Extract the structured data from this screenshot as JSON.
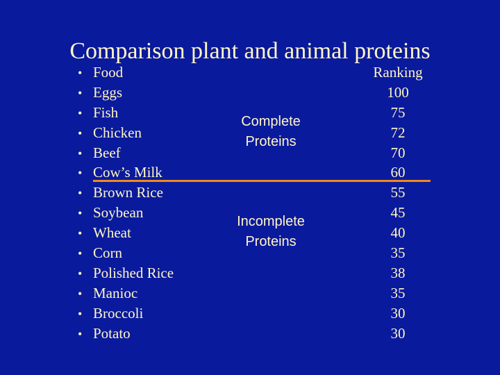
{
  "slide": {
    "title": "Comparison plant and animal proteins",
    "bullet_glyph": "•",
    "foods_header": "Food",
    "ranking_header": "Ranking",
    "rows": [
      {
        "food": "Eggs",
        "ranking": "100"
      },
      {
        "food": "Fish",
        "ranking": "75"
      },
      {
        "food": "Chicken",
        "ranking": "72"
      },
      {
        "food": "Beef",
        "ranking": "70"
      },
      {
        "food": "Cow’s Milk",
        "ranking": "60"
      },
      {
        "food": "Brown Rice",
        "ranking": "55"
      },
      {
        "food": "Soybean",
        "ranking": "45"
      },
      {
        "food": "Wheat",
        "ranking": "40"
      },
      {
        "food": "Corn",
        "ranking": "35"
      },
      {
        "food": "Polished Rice",
        "ranking": "38"
      },
      {
        "food": "Manioc",
        "ranking": "35"
      },
      {
        "food": "Broccoli",
        "ranking": "30"
      },
      {
        "food": "Potato",
        "ranking": "30"
      }
    ],
    "groups": {
      "complete_line1": "Complete",
      "complete_line2": "Proteins",
      "incomplete_line1": "Incomplete",
      "incomplete_line2": "Proteins"
    }
  },
  "colors": {
    "background": "#0a1a9c",
    "text": "#fff6c8",
    "divider": "#f08a1c"
  }
}
